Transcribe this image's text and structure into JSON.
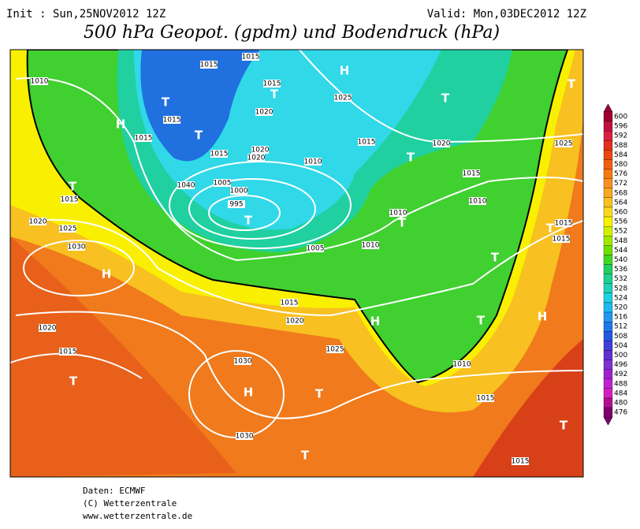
{
  "header": {
    "init": "Init : Sun,25NOV2012 12Z",
    "valid": "Valid: Mon,03DEC2012 12Z",
    "title": "500 hPa Geopot. (gpdm) und Bodendruck (hPa)"
  },
  "colorbar": {
    "ticks": [
      600,
      596,
      592,
      588,
      584,
      580,
      576,
      572,
      568,
      564,
      560,
      556,
      552,
      548,
      544,
      540,
      536,
      532,
      528,
      524,
      520,
      516,
      512,
      508,
      504,
      500,
      496,
      492,
      488,
      484,
      480,
      476
    ],
    "colors": [
      "#a00030",
      "#c01040",
      "#d82040",
      "#e03020",
      "#e84810",
      "#f06010",
      "#f87810",
      "#f89020",
      "#f8a820",
      "#f8c020",
      "#f8d820",
      "#f8f000",
      "#d0f000",
      "#a0e800",
      "#70e000",
      "#40d820",
      "#20d060",
      "#20d090",
      "#20d0b8",
      "#20d0e0",
      "#20b8f0",
      "#2098f0",
      "#2078e8",
      "#2058e0",
      "#4040d8",
      "#6030d0",
      "#8030d0",
      "#a020d0",
      "#c020d0",
      "#d020c0",
      "#b01090",
      "#800070"
    ]
  },
  "map": {
    "pressure_labels": [
      1010,
      1015,
      1015,
      1015,
      1015,
      1015,
      1020,
      1020,
      1020,
      1015,
      1010,
      1015,
      1025,
      1020,
      1015,
      1010,
      1025,
      1015,
      1020,
      1025,
      1030,
      1040,
      1005,
      1000,
      995,
      1005,
      1010,
      1010,
      1015,
      1020,
      1020,
      1015,
      1025,
      1030,
      1030,
      1010,
      1015,
      1015,
      1015,
      1015
    ],
    "centers": [
      "H",
      "T",
      "T",
      "T",
      "T",
      "H",
      "T",
      "T",
      "T",
      "T",
      "T",
      "T",
      "H",
      "T",
      "H",
      "T",
      "H",
      "T",
      "H",
      "T",
      "T",
      "T"
    ]
  },
  "footer": {
    "source": "Daten: ECMWF",
    "copyright": "(C) Wetterzentrale",
    "url": "www.wetterzentrale.de"
  }
}
